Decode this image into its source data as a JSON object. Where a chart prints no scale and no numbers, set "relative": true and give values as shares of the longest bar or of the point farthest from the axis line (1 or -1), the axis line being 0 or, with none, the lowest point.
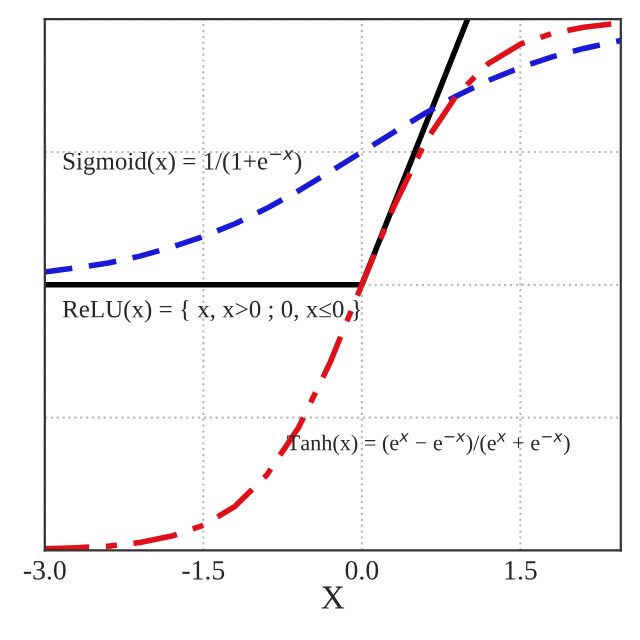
{
  "chart_data": {
    "type": "line",
    "relative": true,
    "xlabel": "X",
    "x": [
      -3.0,
      -2.7,
      -2.4,
      -2.1,
      -1.8,
      -1.5,
      -1.2,
      -0.9,
      -0.6,
      -0.3,
      0.0,
      0.3,
      0.6,
      0.9,
      1.2,
      1.5,
      1.8,
      2.1,
      2.45
    ],
    "xlim": [
      -3.0,
      2.45
    ],
    "xticks": [
      {
        "value": -3.0,
        "label": "-3.0"
      },
      {
        "value": -1.5,
        "label": "-1.5"
      },
      {
        "value": 0.0,
        "label": "0.0"
      },
      {
        "value": 1.5,
        "label": "1.5"
      }
    ],
    "grid": true,
    "legend": false,
    "series": [
      {
        "color": "#000000",
        "line_style": "solid",
        "x": [
          -3.0,
          0.0,
          1.0
        ],
        "values": [
          0.5,
          0.5,
          1.0
        ]
      },
      {
        "color": "#1a1ad6",
        "line_style": "dashed",
        "values": [
          0.524,
          0.532,
          0.541,
          0.554,
          0.571,
          0.591,
          0.615,
          0.644,
          0.677,
          0.713,
          0.75,
          0.787,
          0.823,
          0.856,
          0.885,
          0.909,
          0.929,
          0.945,
          0.96
        ]
      },
      {
        "color": "#e0101a",
        "line_style": "dashdot",
        "values": [
          0.003,
          0.005,
          0.008,
          0.015,
          0.027,
          0.047,
          0.083,
          0.142,
          0.231,
          0.354,
          0.5,
          0.646,
          0.769,
          0.858,
          0.917,
          0.953,
          0.973,
          0.985,
          0.993
        ]
      }
    ],
    "annotations": [
      "Sigmoid(x) = 1/(1+e$^{−x}$)",
      "ReLU(x) = { x, x>0 ; 0, x≤0 }",
      "Tanh(x) = (e$^{x}$ − e$^{−x}$)/(e$^{x}$ + e$^{−x}$)"
    ]
  }
}
